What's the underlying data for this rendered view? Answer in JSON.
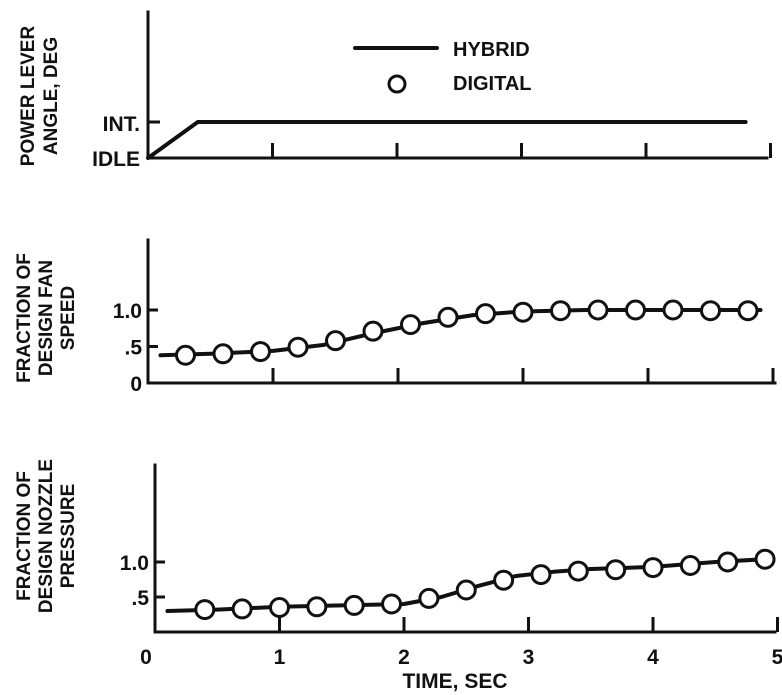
{
  "chart_data": {
    "type": "line",
    "xlabel": "TIME, SEC",
    "x_ticks": [
      "0",
      "1",
      "2",
      "3",
      "4",
      "5"
    ],
    "xlim": [
      0,
      5
    ],
    "legend": {
      "placement": "top-center",
      "entries": [
        {
          "name": "HYBRID",
          "marker": "line"
        },
        {
          "name": "DIGITAL",
          "marker": "circle"
        }
      ]
    },
    "panels": [
      {
        "ylabel_lines": [
          "POWER LEVER",
          "ANGLE, DEG"
        ],
        "y_tick_labels": [
          "INT.",
          "IDLE"
        ],
        "series": [
          {
            "name": "HYBRID",
            "x": [
              0,
              0.4,
              4.8
            ],
            "y": [
              "IDLE",
              "INT.",
              "INT."
            ]
          }
        ]
      },
      {
        "ylabel_lines": [
          "FRACTION OF",
          "DESIGN FAN",
          "SPEED"
        ],
        "y_tick_labels": [
          "1.0",
          ".5",
          "0"
        ],
        "ylim": [
          0,
          1.45
        ],
        "series": [
          {
            "name": "HYBRID",
            "x": [
              0.1,
              0.5,
              1.0,
              1.4,
              1.8,
              2.2,
              2.6,
              3.0,
              3.5,
              4.0,
              4.5,
              4.9
            ],
            "y": [
              0.38,
              0.4,
              0.44,
              0.52,
              0.68,
              0.82,
              0.93,
              0.98,
              1.0,
              1.0,
              1.0,
              1.0
            ]
          },
          {
            "name": "DIGITAL",
            "x": [
              0.3,
              0.6,
              0.9,
              1.2,
              1.5,
              1.8,
              2.1,
              2.4,
              2.7,
              3.0,
              3.3,
              3.6,
              3.9,
              4.2,
              4.5,
              4.8
            ],
            "y": [
              0.38,
              0.4,
              0.43,
              0.49,
              0.58,
              0.71,
              0.8,
              0.9,
              0.95,
              0.97,
              0.99,
              1.0,
              1.0,
              1.0,
              0.99,
              0.99
            ]
          }
        ]
      },
      {
        "ylabel_lines": [
          "FRACTION OF",
          "DESIGN NOZZLE",
          "PRESSURE"
        ],
        "y_tick_labels": [
          "1.0",
          ".5"
        ],
        "ylim": [
          0,
          1.8
        ],
        "series": [
          {
            "name": "HYBRID",
            "x": [
              0.1,
              0.5,
              1.0,
              1.5,
              2.0,
              2.3,
              2.6,
              2.9,
              3.2,
              3.5,
              4.0,
              4.5,
              4.9
            ],
            "y": [
              0.3,
              0.32,
              0.36,
              0.38,
              0.4,
              0.5,
              0.66,
              0.8,
              0.86,
              0.9,
              0.93,
              1.0,
              1.04
            ]
          },
          {
            "name": "DIGITAL",
            "x": [
              0.4,
              0.7,
              1.0,
              1.3,
              1.6,
              1.9,
              2.2,
              2.5,
              2.8,
              3.1,
              3.4,
              3.7,
              4.0,
              4.3,
              4.6,
              4.9
            ],
            "y": [
              0.32,
              0.33,
              0.35,
              0.36,
              0.38,
              0.4,
              0.48,
              0.6,
              0.74,
              0.82,
              0.87,
              0.89,
              0.92,
              0.95,
              1.0,
              1.04
            ]
          }
        ]
      }
    ]
  }
}
